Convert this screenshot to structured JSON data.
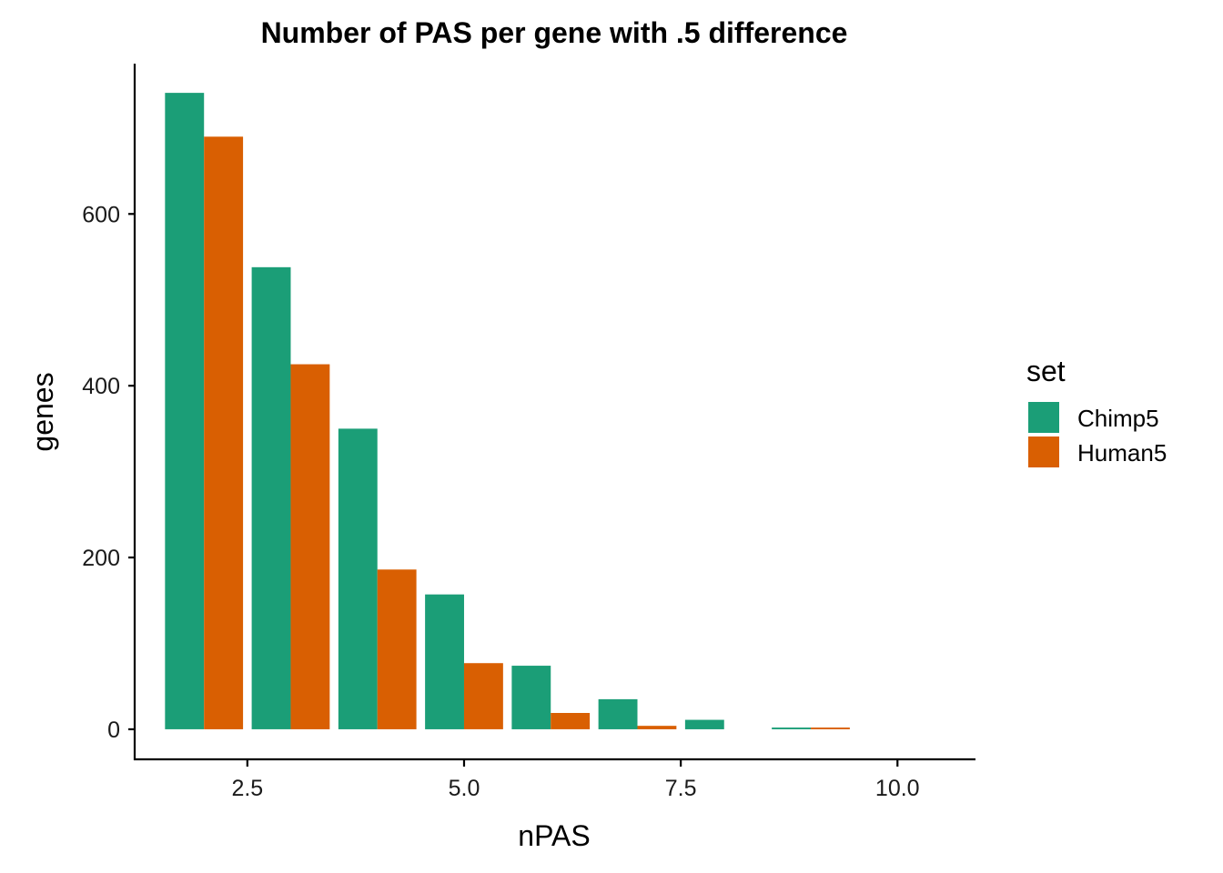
{
  "chart_data": {
    "type": "bar",
    "title": "Number of PAS per gene with .5 difference",
    "xlabel": "nPAS",
    "ylabel": "genes",
    "x": [
      2,
      3,
      4,
      5,
      6,
      7,
      8,
      9
    ],
    "series": [
      {
        "name": "Chimp5",
        "color": "#1B9E77",
        "values": [
          741,
          538,
          350,
          157,
          74,
          35,
          11,
          2
        ]
      },
      {
        "name": "Human5",
        "color": "#D95F02",
        "values": [
          690,
          425,
          186,
          77,
          19,
          4,
          0,
          2
        ]
      }
    ],
    "xlim": [
      1.2,
      10.9
    ],
    "ylim": [
      -35,
      775
    ],
    "xticks": [
      2.5,
      5.0,
      7.5,
      10.0
    ],
    "xtick_labels": [
      "2.5",
      "5.0",
      "7.5",
      "10.0"
    ],
    "yticks": [
      0,
      200,
      400,
      600
    ],
    "ytick_labels": [
      "0",
      "200",
      "400",
      "600"
    ],
    "grid": false,
    "legend": {
      "title": "set",
      "position": "right"
    }
  }
}
